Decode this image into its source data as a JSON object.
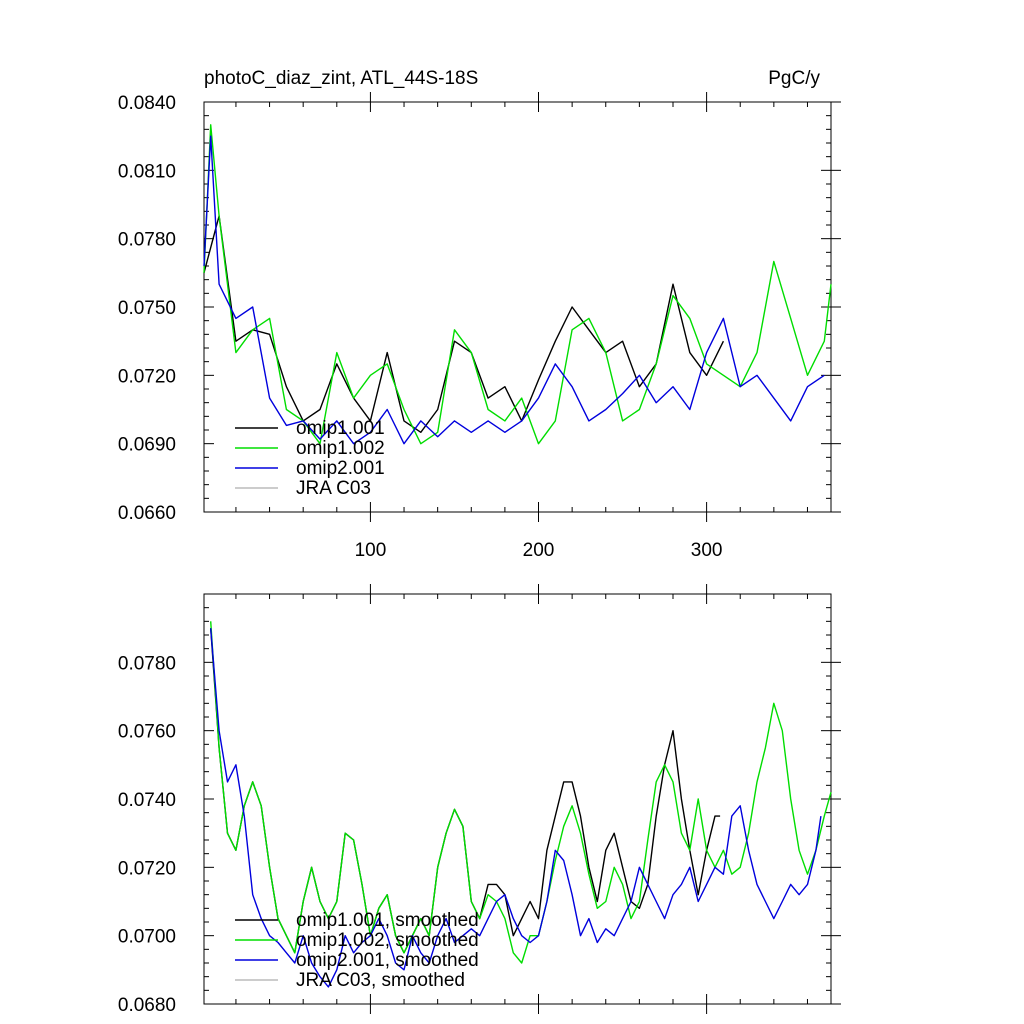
{
  "header": {
    "title": "photoC_diaz_zint, ATL_44S-18S",
    "units": "PgC/y"
  },
  "chart_data": [
    {
      "type": "line",
      "xlim": [
        1,
        374
      ],
      "ylim": [
        0.066,
        0.084
      ],
      "x_ticks": [
        100,
        200,
        300
      ],
      "y_ticks": [
        "0.0660",
        "0.0690",
        "0.0720",
        "0.0750",
        "0.0780",
        "0.0810",
        "0.0840"
      ],
      "legend_position": "bottom-left",
      "series": [
        {
          "name": "omip1.001",
          "color": "#000000",
          "x": [
            1,
            10,
            20,
            30,
            40,
            50,
            60,
            70,
            80,
            90,
            100,
            110,
            120,
            130,
            140,
            150,
            160,
            170,
            180,
            190,
            200,
            210,
            220,
            230,
            240,
            250,
            260,
            270,
            280,
            290,
            300,
            310
          ],
          "values": [
            0.0765,
            0.079,
            0.0735,
            0.074,
            0.0738,
            0.0715,
            0.07,
            0.0705,
            0.0725,
            0.071,
            0.07,
            0.073,
            0.07,
            0.0695,
            0.0705,
            0.0735,
            0.073,
            0.071,
            0.0715,
            0.07,
            0.0718,
            0.0735,
            0.075,
            0.074,
            0.073,
            0.0735,
            0.0715,
            0.0725,
            0.076,
            0.073,
            0.072,
            0.0735
          ]
        },
        {
          "name": "omip1.002",
          "color": "#00dd00",
          "x": [
            1,
            5,
            10,
            20,
            30,
            40,
            50,
            60,
            70,
            80,
            90,
            100,
            110,
            120,
            130,
            140,
            150,
            160,
            170,
            180,
            190,
            200,
            210,
            220,
            230,
            240,
            250,
            260,
            270,
            280,
            290,
            300,
            310,
            320,
            330,
            340,
            350,
            360,
            370,
            374
          ],
          "values": [
            0.0765,
            0.083,
            0.079,
            0.073,
            0.074,
            0.0745,
            0.0705,
            0.07,
            0.069,
            0.073,
            0.071,
            0.072,
            0.0725,
            0.0705,
            0.069,
            0.0695,
            0.074,
            0.073,
            0.0705,
            0.07,
            0.071,
            0.069,
            0.07,
            0.074,
            0.0745,
            0.073,
            0.07,
            0.0705,
            0.0725,
            0.0755,
            0.0745,
            0.0725,
            0.072,
            0.0715,
            0.073,
            0.077,
            0.0745,
            0.072,
            0.0735,
            0.076
          ]
        },
        {
          "name": "omip2.001",
          "color": "#0000dd",
          "x": [
            1,
            5,
            10,
            20,
            30,
            40,
            50,
            60,
            70,
            80,
            90,
            100,
            110,
            120,
            130,
            140,
            150,
            160,
            170,
            180,
            190,
            200,
            210,
            220,
            230,
            240,
            250,
            260,
            270,
            280,
            290,
            300,
            310,
            320,
            330,
            340,
            350,
            360,
            370
          ],
          "values": [
            0.0768,
            0.0825,
            0.076,
            0.0745,
            0.075,
            0.071,
            0.0698,
            0.07,
            0.0692,
            0.07,
            0.069,
            0.0695,
            0.0705,
            0.069,
            0.07,
            0.0693,
            0.07,
            0.0695,
            0.07,
            0.0695,
            0.07,
            0.071,
            0.0725,
            0.0715,
            0.07,
            0.0705,
            0.0712,
            0.072,
            0.0708,
            0.0715,
            0.0705,
            0.073,
            0.0745,
            0.0715,
            0.072,
            0.071,
            0.07,
            0.0715,
            0.072
          ]
        },
        {
          "name": "JRA C03",
          "color": "#bbbbbb",
          "x": [],
          "values": []
        }
      ]
    },
    {
      "type": "line",
      "xlim": [
        1,
        374
      ],
      "ylim": [
        0.068,
        0.08
      ],
      "y_ticks": [
        "0.0680",
        "0.0700",
        "0.0720",
        "0.0740",
        "0.0760",
        "0.0780"
      ],
      "legend_position": "bottom-left",
      "series": [
        {
          "name": "omip1.001, smoothed",
          "color": "#000000",
          "x": [
            5,
            10,
            15,
            20,
            25,
            30,
            35,
            40,
            45,
            50,
            55,
            60,
            65,
            70,
            75,
            80,
            85,
            90,
            95,
            100,
            105,
            110,
            115,
            120,
            125,
            130,
            135,
            140,
            145,
            150,
            155,
            160,
            165,
            170,
            175,
            180,
            185,
            190,
            195,
            200,
            205,
            210,
            215,
            220,
            225,
            230,
            235,
            240,
            245,
            250,
            255,
            260,
            265,
            270,
            275,
            280,
            285,
            290,
            295,
            300,
            305,
            308
          ],
          "values": [
            0.079,
            0.0755,
            0.073,
            0.0725,
            0.0738,
            0.0745,
            0.0738,
            0.072,
            0.0705,
            0.07,
            0.0695,
            0.071,
            0.072,
            0.071,
            0.0705,
            0.071,
            0.073,
            0.0728,
            0.0715,
            0.07,
            0.0708,
            0.0712,
            0.07,
            0.0695,
            0.07,
            0.0705,
            0.07,
            0.072,
            0.073,
            0.0737,
            0.0732,
            0.071,
            0.0705,
            0.0715,
            0.0715,
            0.0712,
            0.07,
            0.0705,
            0.071,
            0.0705,
            0.0725,
            0.0735,
            0.0745,
            0.0745,
            0.0735,
            0.072,
            0.071,
            0.0725,
            0.073,
            0.072,
            0.071,
            0.0708,
            0.0715,
            0.0735,
            0.075,
            0.076,
            0.074,
            0.0725,
            0.0712,
            0.0725,
            0.0735,
            0.0735
          ]
        },
        {
          "name": "omip1.002, smoothed",
          "color": "#00dd00",
          "x": [
            5,
            10,
            15,
            20,
            25,
            30,
            35,
            40,
            45,
            50,
            55,
            60,
            65,
            70,
            75,
            80,
            85,
            90,
            95,
            100,
            105,
            110,
            115,
            120,
            125,
            130,
            135,
            140,
            145,
            150,
            155,
            160,
            165,
            170,
            175,
            180,
            185,
            190,
            195,
            200,
            205,
            210,
            215,
            220,
            225,
            230,
            235,
            240,
            245,
            250,
            255,
            260,
            265,
            270,
            275,
            280,
            285,
            290,
            295,
            300,
            305,
            310,
            315,
            320,
            325,
            330,
            335,
            340,
            345,
            350,
            355,
            360,
            365,
            370,
            374
          ],
          "values": [
            0.0792,
            0.0755,
            0.073,
            0.0725,
            0.0738,
            0.0745,
            0.0738,
            0.072,
            0.0705,
            0.07,
            0.0695,
            0.071,
            0.072,
            0.071,
            0.0705,
            0.071,
            0.073,
            0.0728,
            0.0715,
            0.07,
            0.0708,
            0.0712,
            0.07,
            0.0695,
            0.07,
            0.0705,
            0.07,
            0.072,
            0.073,
            0.0737,
            0.0732,
            0.071,
            0.0705,
            0.0712,
            0.071,
            0.0705,
            0.0695,
            0.0692,
            0.07,
            0.07,
            0.071,
            0.0722,
            0.0732,
            0.0738,
            0.073,
            0.0718,
            0.0708,
            0.071,
            0.072,
            0.0715,
            0.0705,
            0.071,
            0.0728,
            0.0745,
            0.075,
            0.0745,
            0.073,
            0.0725,
            0.074,
            0.0725,
            0.072,
            0.0725,
            0.0718,
            0.072,
            0.073,
            0.0745,
            0.0755,
            0.0768,
            0.076,
            0.074,
            0.0725,
            0.0718,
            0.0725,
            0.0735,
            0.0742
          ]
        },
        {
          "name": "omip2.001, smoothed",
          "color": "#0000dd",
          "x": [
            5,
            10,
            15,
            20,
            25,
            30,
            35,
            40,
            45,
            50,
            55,
            60,
            65,
            70,
            75,
            80,
            85,
            90,
            95,
            100,
            105,
            110,
            115,
            120,
            125,
            130,
            135,
            140,
            145,
            150,
            155,
            160,
            165,
            170,
            175,
            180,
            185,
            190,
            195,
            200,
            205,
            210,
            215,
            220,
            225,
            230,
            235,
            240,
            245,
            250,
            255,
            260,
            265,
            270,
            275,
            280,
            285,
            290,
            295,
            300,
            305,
            310,
            315,
            320,
            325,
            330,
            335,
            340,
            345,
            350,
            355,
            360,
            365,
            368
          ],
          "values": [
            0.079,
            0.076,
            0.0745,
            0.075,
            0.0735,
            0.0712,
            0.0705,
            0.07,
            0.0698,
            0.0695,
            0.0692,
            0.07,
            0.0692,
            0.0688,
            0.0685,
            0.069,
            0.07,
            0.0695,
            0.0698,
            0.07,
            0.0705,
            0.07,
            0.0692,
            0.069,
            0.07,
            0.0695,
            0.0692,
            0.07,
            0.0705,
            0.0698,
            0.07,
            0.0702,
            0.07,
            0.0705,
            0.071,
            0.0712,
            0.0705,
            0.07,
            0.0698,
            0.07,
            0.071,
            0.0725,
            0.0722,
            0.0712,
            0.07,
            0.0705,
            0.0698,
            0.0702,
            0.07,
            0.0705,
            0.071,
            0.072,
            0.0715,
            0.071,
            0.0705,
            0.0712,
            0.0715,
            0.072,
            0.071,
            0.0715,
            0.072,
            0.0718,
            0.0735,
            0.0738,
            0.0725,
            0.0715,
            0.071,
            0.0705,
            0.071,
            0.0715,
            0.0712,
            0.0715,
            0.0725,
            0.0735
          ]
        },
        {
          "name": "JRA C03, smoothed",
          "color": "#bbbbbb",
          "x": [],
          "values": []
        }
      ]
    }
  ]
}
